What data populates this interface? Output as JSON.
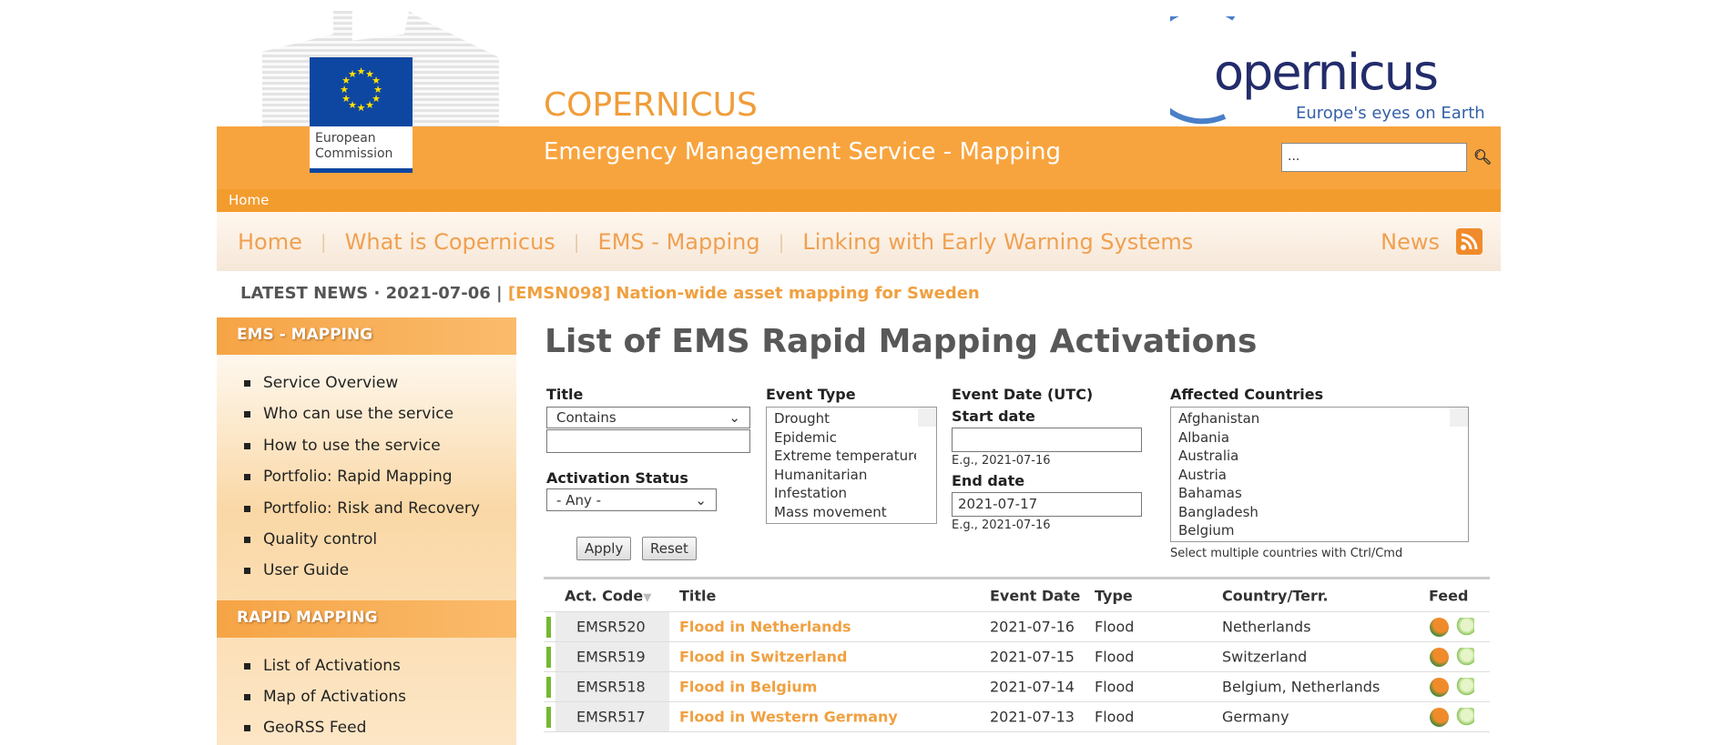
{
  "header": {
    "ec_logo_text": "European Commission",
    "brand": "COPERNICUS",
    "copernicus_logo": "opernicus",
    "copernicus_tagline": "Europe's eyes on Earth",
    "service_title": "Emergency Management Service - Mapping",
    "search_placeholder": "...",
    "search_icon": "search-icon"
  },
  "breadcrumb": {
    "home": "Home"
  },
  "nav": {
    "items": [
      "Home",
      "What is Copernicus",
      "EMS - Mapping",
      "Linking with Early Warning Systems"
    ],
    "news": "News"
  },
  "latest_news": {
    "prefix": "LATEST NEWS · 2021-07-06 |",
    "link": "[EMSN098] Nation-wide asset mapping for Sweden"
  },
  "sidebar": {
    "sections": [
      {
        "title": "EMS - MAPPING",
        "items": [
          "Service Overview",
          "Who can use the service",
          "How to use the service",
          "Portfolio: Rapid Mapping",
          "Portfolio: Risk and Recovery",
          "Quality control",
          "User Guide"
        ]
      },
      {
        "title": "RAPID MAPPING",
        "items": [
          "List of Activations",
          "Map of Activations",
          "GeoRSS Feed"
        ]
      }
    ]
  },
  "main": {
    "title": "List of EMS Rapid Mapping Activations"
  },
  "filters": {
    "title_label": "Title",
    "title_mode": "Contains",
    "title_value": "",
    "status_label": "Activation Status",
    "status_value": "- Any -",
    "event_type_label": "Event Type",
    "event_types": [
      "Drought",
      "Epidemic",
      "Extreme temperature",
      "Humanitarian",
      "Infestation",
      "Mass movement"
    ],
    "event_date_label": "Event Date (UTC)",
    "start_label": "Start date",
    "start_value": "",
    "start_hint": "E.g., 2021-07-16",
    "end_label": "End date",
    "end_value": "2021-07-17",
    "end_hint": "E.g., 2021-07-16",
    "countries_label": "Affected Countries",
    "countries": [
      "Afghanistan",
      "Albania",
      "Australia",
      "Austria",
      "Bahamas",
      "Bangladesh",
      "Belgium"
    ],
    "countries_hint": "Select multiple countries with Ctrl/Cmd",
    "apply": "Apply",
    "reset": "Reset"
  },
  "table": {
    "headers": [
      "Act. Code",
      "Title",
      "Event Date",
      "Type",
      "Country/Terr.",
      "Feed"
    ],
    "status_color": "#75b831",
    "rows": [
      {
        "code": "EMSR520",
        "title": "Flood in Netherlands",
        "date": "2021-07-16",
        "type": "Flood",
        "country": "Netherlands"
      },
      {
        "code": "EMSR519",
        "title": "Flood in Switzerland",
        "date": "2021-07-15",
        "type": "Flood",
        "country": "Switzerland"
      },
      {
        "code": "EMSR518",
        "title": "Flood in Belgium",
        "date": "2021-07-14",
        "type": "Flood",
        "country": "Belgium, Netherlands"
      },
      {
        "code": "EMSR517",
        "title": "Flood in Western Germany",
        "date": "2021-07-13",
        "type": "Flood",
        "country": "Germany"
      }
    ]
  }
}
